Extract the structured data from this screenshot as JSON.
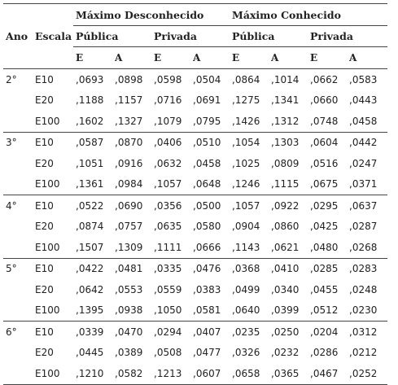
{
  "header": {
    "ano_label": "Ano",
    "escala_label": "Escala",
    "group_unknown": "Máximo Desconhecido",
    "group_known": "Máximo Conhecido",
    "publica": "Pública",
    "privada": "Privada",
    "col_e": "E",
    "col_a": "A"
  },
  "groups": [
    {
      "ano": "2°",
      "rows": [
        {
          "escala": "E10",
          "values": [
            ",0693",
            ",0898",
            ",0598",
            ",0504",
            ",0864",
            ",1014",
            ",0662",
            ",0583"
          ]
        },
        {
          "escala": "E20",
          "values": [
            ",1188",
            ",1157",
            ",0716",
            ",0691",
            ",1275",
            ",1341",
            ",0660",
            ",0443"
          ]
        },
        {
          "escala": "E100",
          "values": [
            ",1602",
            ",1327",
            ",1079",
            ",0795",
            ",1426",
            ",1312",
            ",0748",
            ",0458"
          ]
        }
      ]
    },
    {
      "ano": "3°",
      "rows": [
        {
          "escala": "E10",
          "values": [
            ",0587",
            ",0870",
            ",0406",
            ",0510",
            ",1054",
            ",1303",
            ",0604",
            ",0442"
          ]
        },
        {
          "escala": "E20",
          "values": [
            ",1051",
            ",0916",
            ",0632",
            ",0458",
            ",1025",
            ",0809",
            ",0516",
            ",0247"
          ]
        },
        {
          "escala": "E100",
          "values": [
            ",1361",
            ",0984",
            ",1057",
            ",0648",
            ",1246",
            ",1115",
            ",0675",
            ",0371"
          ]
        }
      ]
    },
    {
      "ano": "4°",
      "rows": [
        {
          "escala": "E10",
          "values": [
            ",0522",
            ",0690",
            ",0356",
            ",0500",
            ",1057",
            ",0922",
            ",0295",
            ",0637"
          ]
        },
        {
          "escala": "E20",
          "values": [
            ",0874",
            ",0757",
            ",0635",
            ",0580",
            ",0904",
            ",0860",
            ",0425",
            ",0287"
          ]
        },
        {
          "escala": "E100",
          "values": [
            ",1507",
            ",1309",
            ",1111",
            ",0666",
            ",1143",
            ",0621",
            ",0480",
            ",0268"
          ]
        }
      ]
    },
    {
      "ano": "5°",
      "rows": [
        {
          "escala": "E10",
          "values": [
            ",0422",
            ",0481",
            ",0335",
            ",0476",
            ",0368",
            ",0410",
            ",0285",
            ",0283"
          ]
        },
        {
          "escala": "E20",
          "values": [
            ",0642",
            ",0553",
            ",0559",
            ",0383",
            ",0499",
            ",0340",
            ",0455",
            ",0248"
          ]
        },
        {
          "escala": "E100",
          "values": [
            ",1395",
            ",0938",
            ",1050",
            ",0581",
            ",0640",
            ",0399",
            ",0512",
            ",0230"
          ]
        }
      ]
    },
    {
      "ano": "6°",
      "rows": [
        {
          "escala": "E10",
          "values": [
            ",0339",
            ",0470",
            ",0294",
            ",0407",
            ",0235",
            ",0250",
            ",0204",
            ",0312"
          ]
        },
        {
          "escala": "E20",
          "values": [
            ",0445",
            ",0389",
            ",0508",
            ",0477",
            ",0326",
            ",0232",
            ",0286",
            ",0212"
          ]
        },
        {
          "escala": "E100",
          "values": [
            ",1210",
            ",0582",
            ",1213",
            ",0607",
            ",0658",
            ",0365",
            ",0467",
            ",0252"
          ]
        }
      ]
    }
  ]
}
